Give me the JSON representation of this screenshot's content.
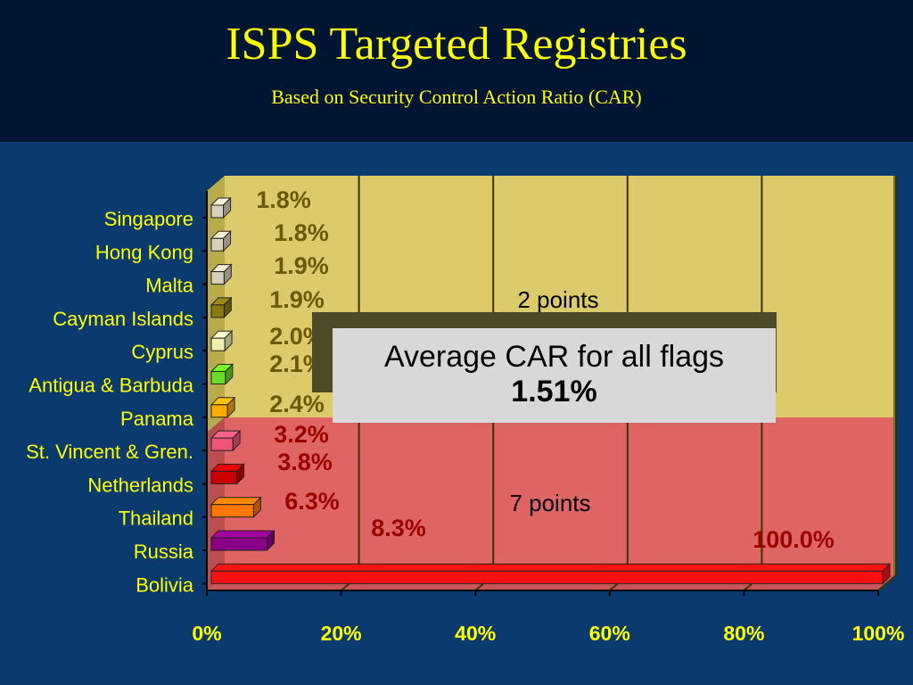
{
  "title": "ISPS Targeted Registries",
  "subtitle": "Based on Security Control Action Ratio (CAR)",
  "colors": {
    "header_bg": "#021634",
    "slide_bg": "#0a3a6e",
    "text": "#ffff00",
    "upper_zone": "#dccb6a",
    "lower_zone": "#df6464"
  },
  "zones": {
    "upper_label": "2 points",
    "lower_label": "7 points"
  },
  "callout": {
    "line1": "Average CAR for all flags",
    "line2": "1.51%"
  },
  "chart_data": {
    "type": "bar",
    "orientation": "horizontal",
    "categories": [
      "Singapore",
      "Hong Kong",
      "Malta",
      "Cayman Islands",
      "Cyprus",
      "Antigua & Barbuda",
      "Panama",
      "St. Vincent & Gren.",
      "Netherlands",
      "Thailand",
      "Russia",
      "Bolivia"
    ],
    "values": [
      1.8,
      1.8,
      1.9,
      1.9,
      2.0,
      2.1,
      2.4,
      3.2,
      3.8,
      6.3,
      8.3,
      100.0
    ],
    "data_labels": [
      "1.8%",
      "1.8%",
      "1.9%",
      "1.9%",
      "2.0%",
      "2.1%",
      "2.4%",
      "3.2%",
      "3.8%",
      "6.3%",
      "8.3%",
      "100.0%"
    ],
    "bar_colors": [
      "#d8d0b8",
      "#d8d0b8",
      "#d8d0b8",
      "#8a7a10",
      "#f0f0b0",
      "#66dd22",
      "#ffaa00",
      "#ee5577",
      "#cc0000",
      "#ff7700",
      "#8a0088",
      "#ff1111"
    ],
    "label_colors": [
      "#6b5a00",
      "#6b5a00",
      "#6b5a00",
      "#6b5a00",
      "#6b5a00",
      "#6b5a00",
      "#6b5a00",
      "#990000",
      "#990000",
      "#990000",
      "#990000",
      "#990000"
    ],
    "x_ticks": [
      "0%",
      "20%",
      "40%",
      "60%",
      "80%",
      "100%"
    ],
    "xlim": [
      0,
      100
    ],
    "grid": true,
    "title": "",
    "xlabel": "",
    "ylabel": ""
  }
}
